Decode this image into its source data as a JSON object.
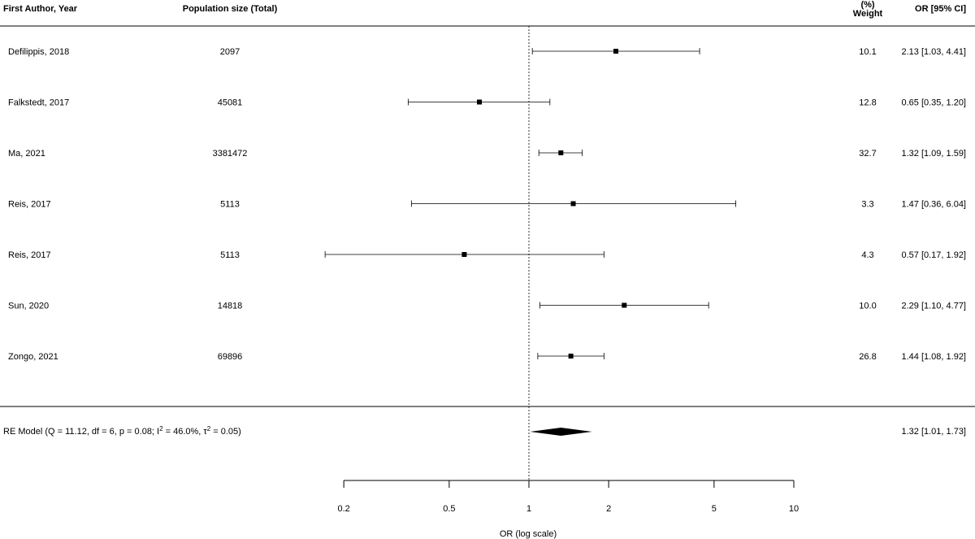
{
  "chart_data": {
    "type": "forest",
    "headers": {
      "study": "First Author, Year",
      "population": "Population size (Total)",
      "weight_pct": "(%)",
      "weight": "Weight",
      "ci": "OR [95% CI]"
    },
    "studies": [
      {
        "label": "Defilippis, 2018",
        "population": "2097",
        "weight": "10.1",
        "ci_text": "2.13 [1.03, 4.41]",
        "or": 2.13,
        "lower": 1.03,
        "upper": 4.41
      },
      {
        "label": "Falkstedt, 2017",
        "population": "45081",
        "weight": "12.8",
        "ci_text": "0.65 [0.35, 1.20]",
        "or": 0.65,
        "lower": 0.35,
        "upper": 1.2
      },
      {
        "label": "Ma, 2021",
        "population": "3381472",
        "weight": "32.7",
        "ci_text": "1.32 [1.09, 1.59]",
        "or": 1.32,
        "lower": 1.09,
        "upper": 1.59
      },
      {
        "label": "Reis, 2017",
        "population": "5113",
        "weight": "3.3",
        "ci_text": "1.47 [0.36, 6.04]",
        "or": 1.47,
        "lower": 0.36,
        "upper": 6.04
      },
      {
        "label": "Reis, 2017",
        "population": "5113",
        "weight": "4.3",
        "ci_text": "0.57 [0.17, 1.92]",
        "or": 0.57,
        "lower": 0.17,
        "upper": 1.92
      },
      {
        "label": "Sun, 2020",
        "population": "14818",
        "weight": "10.0",
        "ci_text": "2.29 [1.10, 4.77]",
        "or": 2.29,
        "lower": 1.1,
        "upper": 4.77
      },
      {
        "label": "Zongo, 2021",
        "population": "69896",
        "weight": "26.8",
        "ci_text": "1.44 [1.08, 1.92]",
        "or": 1.44,
        "lower": 1.08,
        "upper": 1.92
      }
    ],
    "summary": {
      "label_main": "RE Model (Q = 11.12, df = 6, p = 0.08; I",
      "label_sup1": "2",
      "label_mid": " = 46.0%, τ",
      "label_sup2": "2",
      "label_end": " = 0.05)",
      "ci_text": "1.32 [1.01, 1.73]",
      "or": 1.32,
      "lower": 1.01,
      "upper": 1.73
    },
    "x_axis": {
      "label": "OR (log scale)",
      "scale": "log",
      "ticks": [
        0.2,
        0.5,
        1,
        2,
        5,
        10
      ],
      "tick_labels": [
        "0.2",
        "0.5",
        "1",
        "2",
        "5",
        "10"
      ],
      "range": [
        0.2,
        10
      ],
      "reference_line": 1
    }
  }
}
